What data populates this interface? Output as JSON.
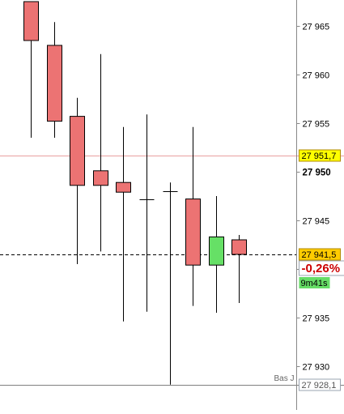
{
  "chart_data": {
    "type": "candlestick",
    "y_axis": {
      "ticks": [
        {
          "value": 27965,
          "label": "27 965",
          "bold": false
        },
        {
          "value": 27960,
          "label": "27 960",
          "bold": false
        },
        {
          "value": 27955,
          "label": "27 955",
          "bold": false
        },
        {
          "value": 27950,
          "label": "27 950",
          "bold": true
        },
        {
          "value": 27945,
          "label": "27 945",
          "bold": false
        },
        {
          "value": 27940,
          "label": "",
          "bold": false
        },
        {
          "value": 27935,
          "label": "27 935",
          "bold": false
        },
        {
          "value": 27930,
          "label": "27 930",
          "bold": false
        }
      ],
      "range": [
        27927.5,
        27967.5
      ],
      "position": "right"
    },
    "candles": [
      {
        "open": 27967.5,
        "high": 27967.5,
        "low": 27953.5,
        "close": 27963.5
      },
      {
        "open": 27963.0,
        "high": 27965.4,
        "low": 27953.5,
        "close": 27955.2
      },
      {
        "open": 27955.7,
        "high": 27957.6,
        "low": 27940.5,
        "close": 27948.6
      },
      {
        "open": 27950.1,
        "high": 27962.1,
        "low": 27941.8,
        "close": 27948.6
      },
      {
        "open": 27948.9,
        "high": 27954.6,
        "low": 27934.6,
        "close": 27947.9
      },
      {
        "open": 27947.2,
        "high": 27955.9,
        "low": 27935.6,
        "close": 27947.2
      },
      {
        "open": 27948.0,
        "high": 27948.9,
        "low": 27928.1,
        "close": 27948.0
      },
      {
        "open": 27947.2,
        "high": 27954.6,
        "low": 27936.2,
        "close": 27940.4
      },
      {
        "open": 27940.4,
        "high": 27947.5,
        "low": 27935.5,
        "close": 27943.3
      },
      {
        "open": 27943.0,
        "high": 27943.5,
        "low": 27936.5,
        "close": 27941.5
      }
    ],
    "reference_lines": [
      {
        "value": 27951.7,
        "label": "27 951,7",
        "style": "solid",
        "color": "#e8a0a0",
        "tag_bg": "#ffff00"
      },
      {
        "value": 27941.5,
        "label": "27 941,5",
        "style": "dashed",
        "color": "#000000",
        "tag_bg": "#ffcc00"
      },
      {
        "value": 27928.1,
        "label": "27 928,1",
        "style": "solid",
        "color": "#808080",
        "tag_bg": "#ffffff",
        "caption": "Bas J"
      }
    ],
    "change_pct": "-0,26%",
    "timer": "9m41s",
    "colors": {
      "bear_body": "#ec7373",
      "bull_body": "#66e066",
      "wick": "#000000",
      "axis_line": "#888888",
      "change_text": "#cc0000",
      "timer_bg": "#66dd66"
    }
  }
}
